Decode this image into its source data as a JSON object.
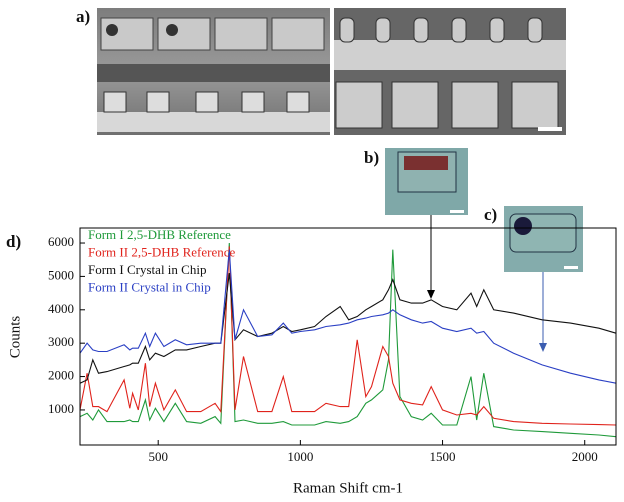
{
  "panel_labels": [
    "a)",
    "b)",
    "c)",
    "d)"
  ],
  "chart_data": {
    "type": "line",
    "xlabel": "Raman Shift cm-1",
    "ylabel": "Counts",
    "xlim": [
      225,
      2110
    ],
    "ylim": [
      -50,
      6450
    ],
    "xticks": [
      500,
      1000,
      1500,
      2000
    ],
    "yticks": [
      1000,
      2000,
      3000,
      4000,
      5000,
      6000
    ],
    "legend": "upper left",
    "x": [
      225,
      250,
      270,
      290,
      320,
      380,
      400,
      410,
      430,
      455,
      470,
      490,
      520,
      560,
      600,
      650,
      700,
      720,
      750,
      770,
      800,
      850,
      900,
      940,
      970,
      1000,
      1050,
      1090,
      1140,
      1170,
      1200,
      1230,
      1250,
      1290,
      1310,
      1325,
      1350,
      1390,
      1430,
      1460,
      1500,
      1550,
      1600,
      1620,
      1645,
      1680,
      1750,
      1850,
      1950,
      2050,
      2110
    ],
    "series": [
      {
        "name": "Form I 2,5-DHB Reference",
        "color": "#1f9a3a",
        "values": [
          800,
          900,
          700,
          1000,
          650,
          650,
          700,
          650,
          650,
          1300,
          700,
          1050,
          650,
          1200,
          650,
          600,
          800,
          600,
          6000,
          650,
          700,
          600,
          600,
          650,
          550,
          550,
          550,
          650,
          600,
          650,
          800,
          1200,
          1300,
          1600,
          2500,
          5800,
          1400,
          800,
          700,
          900,
          550,
          550,
          2000,
          700,
          2100,
          500,
          400,
          350,
          300,
          250,
          200
        ]
      },
      {
        "name": "Form II 2,5-DHB Reference",
        "color": "#e0231c",
        "values": [
          1000,
          2100,
          1100,
          1100,
          950,
          1900,
          1050,
          1500,
          1000,
          2400,
          1100,
          1800,
          1000,
          1600,
          950,
          950,
          1200,
          950,
          5900,
          1000,
          2600,
          950,
          950,
          2000,
          950,
          950,
          950,
          1200,
          1100,
          1100,
          3100,
          1400,
          1700,
          2900,
          2600,
          1800,
          1300,
          1200,
          1150,
          1700,
          1000,
          850,
          900,
          850,
          1100,
          750,
          650,
          600,
          580,
          560,
          550
        ]
      },
      {
        "name": "Form I Crystal in Chip",
        "color": "#111111",
        "values": [
          1800,
          1900,
          2500,
          2100,
          2150,
          2300,
          2350,
          2400,
          2400,
          2900,
          2500,
          2700,
          2600,
          2800,
          2800,
          2900,
          3000,
          3000,
          5100,
          3100,
          3400,
          3200,
          3300,
          3500,
          3350,
          3400,
          3500,
          3800,
          4100,
          3700,
          3800,
          4000,
          4100,
          4300,
          4600,
          4900,
          4300,
          4200,
          4200,
          4300,
          4100,
          4000,
          4500,
          4100,
          4600,
          4000,
          3900,
          3700,
          3600,
          3450,
          3300
        ]
      },
      {
        "name": "Form II Crystal in Chip",
        "color": "#2a3fc4",
        "values": [
          2700,
          3000,
          2800,
          2750,
          2750,
          2950,
          2800,
          2850,
          2850,
          3300,
          2900,
          3300,
          2900,
          3100,
          2950,
          3000,
          3000,
          3000,
          5800,
          3100,
          4000,
          3200,
          3250,
          3600,
          3300,
          3350,
          3400,
          3500,
          3550,
          3600,
          3700,
          3750,
          3800,
          3850,
          3900,
          4000,
          3850,
          3700,
          3600,
          3650,
          3450,
          3350,
          3450,
          3300,
          3350,
          3000,
          2700,
          2350,
          2100,
          1900,
          1800
        ]
      }
    ]
  }
}
